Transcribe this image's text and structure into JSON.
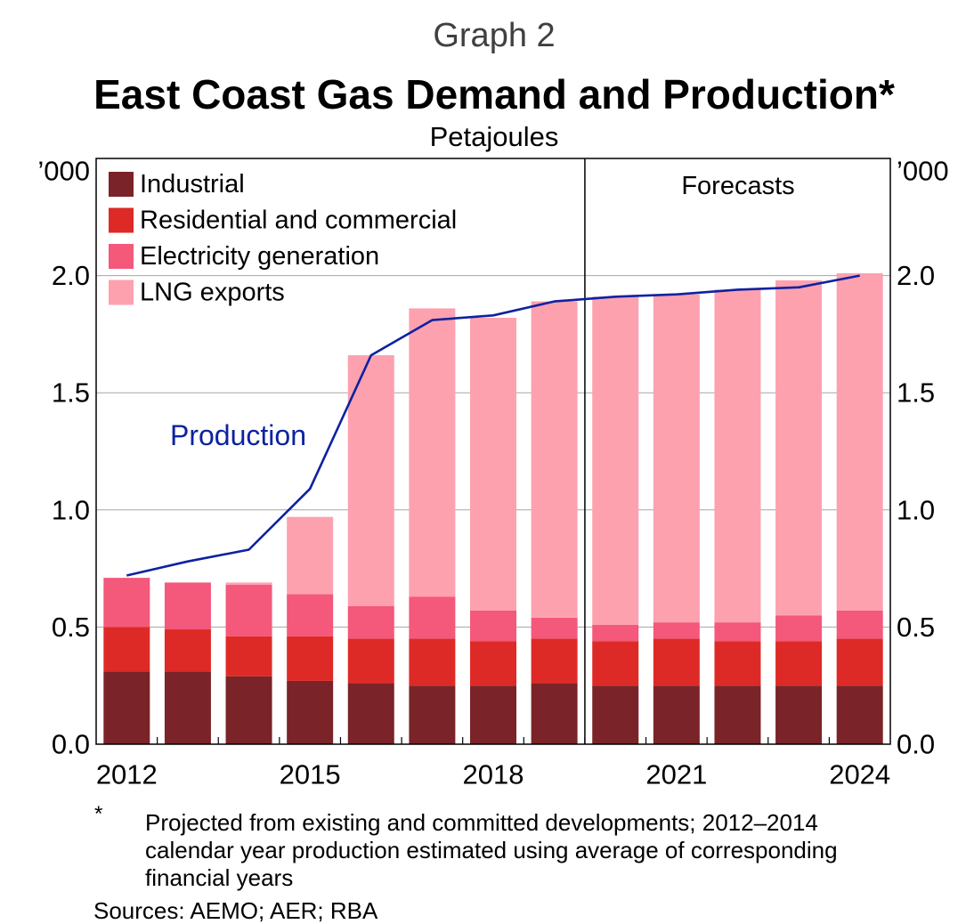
{
  "header": {
    "graph_number": "Graph 2"
  },
  "chart_data": {
    "type": "bar",
    "stacked": true,
    "title": "East Coast Gas Demand and Production*",
    "units": "Petajoules",
    "y_axis_unit_left": "’000",
    "y_axis_unit_right": "’000",
    "ylim": [
      0,
      2.5
    ],
    "yticks": [
      0,
      0.5,
      1.0,
      1.5,
      2.0
    ],
    "ytick_labels": [
      "0.0",
      "0.5",
      "1.0",
      "1.5",
      "2.0"
    ],
    "grid": true,
    "legend_position": "top-left",
    "years": [
      2012,
      2013,
      2014,
      2015,
      2016,
      2017,
      2018,
      2019,
      2020,
      2021,
      2022,
      2023,
      2024
    ],
    "xtick_labels": [
      "2012",
      "2015",
      "2018",
      "2021",
      "2024"
    ],
    "series": [
      {
        "name": "Industrial",
        "color": "#7A2328",
        "values": [
          0.31,
          0.31,
          0.29,
          0.27,
          0.26,
          0.25,
          0.25,
          0.26,
          0.25,
          0.25,
          0.25,
          0.25,
          0.25
        ]
      },
      {
        "name": "Residential and commercial",
        "color": "#DE2A26",
        "values": [
          0.19,
          0.18,
          0.17,
          0.19,
          0.19,
          0.2,
          0.19,
          0.19,
          0.19,
          0.2,
          0.19,
          0.19,
          0.2
        ]
      },
      {
        "name": "Electricity generation",
        "color": "#F4587A",
        "values": [
          0.21,
          0.2,
          0.22,
          0.18,
          0.14,
          0.18,
          0.13,
          0.09,
          0.07,
          0.07,
          0.08,
          0.11,
          0.12
        ]
      },
      {
        "name": "LNG exports",
        "color": "#FDA1AF",
        "values": [
          0.0,
          0.0,
          0.01,
          0.33,
          1.07,
          1.23,
          1.25,
          1.35,
          1.4,
          1.4,
          1.42,
          1.43,
          1.44
        ]
      }
    ],
    "line": {
      "name": "Production",
      "color": "#0D22A0",
      "values": [
        0.72,
        0.78,
        0.83,
        1.09,
        1.66,
        1.81,
        1.83,
        1.89,
        1.91,
        1.92,
        1.94,
        1.95,
        2.0
      ]
    },
    "forecast": {
      "label": "Forecasts",
      "start_year": 2020
    }
  },
  "footnote": {
    "marker": "*",
    "lines": [
      "Projected from existing and committed developments; 2012–2014",
      "calendar year production estimated using average of corresponding",
      "financial years"
    ]
  },
  "sources": "Sources: AEMO; AER; RBA"
}
